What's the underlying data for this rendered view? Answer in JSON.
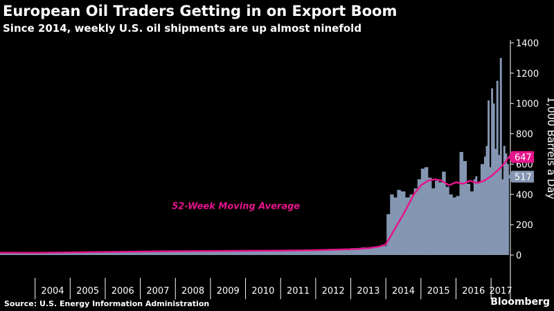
{
  "header": {
    "title": "European Oil Traders Getting in on Export Boom",
    "subtitle": "Since 2014, weekly U.S. oil shipments are up almost ninefold"
  },
  "footer": {
    "source": "Source: U.S. Energy Information Administration",
    "brand": "Bloomberg"
  },
  "colors": {
    "background": "#000000",
    "bars": "#8496b2",
    "moving_average": "#e6148c",
    "text": "#ffffff"
  },
  "chart_data": {
    "type": "area",
    "title": "European Oil Traders Getting in on Export Boom",
    "subtitle": "Since 2014, weekly U.S. oil shipments are up almost ninefold",
    "ylabel": "1,000 Barrels a Day",
    "ylim": [
      0,
      1400
    ],
    "yticks": [
      0,
      200,
      400,
      600,
      800,
      1000,
      1200,
      1400
    ],
    "xlim": [
      2003.0,
      2017.55
    ],
    "x_tick_labels": [
      "2004",
      "2005",
      "2006",
      "2007",
      "2008",
      "2009",
      "2010",
      "2011",
      "2012",
      "2013",
      "2014",
      "2015",
      "2016",
      "2017"
    ],
    "y_axis_side": "right",
    "grid": false,
    "series": [
      {
        "name": "",
        "style": "bars",
        "x": [
          2003.0,
          2004.0,
          2005.0,
          2006.0,
          2007.0,
          2008.0,
          2009.0,
          2010.0,
          2011.0,
          2012.0,
          2012.5,
          2013.0,
          2013.3,
          2013.6,
          2013.9,
          2014.02,
          2014.12,
          2014.22,
          2014.32,
          2014.42,
          2014.55,
          2014.68,
          2014.8,
          2014.9,
          2015.0,
          2015.1,
          2015.2,
          2015.3,
          2015.4,
          2015.5,
          2015.6,
          2015.7,
          2015.8,
          2015.9,
          2016.0,
          2016.1,
          2016.2,
          2016.3,
          2016.4,
          2016.5,
          2016.55,
          2016.6,
          2016.7,
          2016.8,
          2016.85,
          2016.9,
          2016.95,
          2017.0,
          2017.05,
          2017.1,
          2017.15,
          2017.2,
          2017.25,
          2017.3,
          2017.35,
          2017.4,
          2017.45,
          2017.5
        ],
        "values": [
          15,
          15,
          18,
          22,
          25,
          26,
          28,
          30,
          30,
          35,
          40,
          45,
          50,
          55,
          60,
          270,
          400,
          380,
          430,
          420,
          380,
          400,
          440,
          500,
          570,
          580,
          510,
          440,
          490,
          480,
          550,
          450,
          400,
          380,
          390,
          680,
          620,
          470,
          420,
          500,
          520,
          480,
          600,
          650,
          720,
          1020,
          580,
          1100,
          1000,
          700,
          1150,
          660,
          1300,
          500,
          720,
          670,
          600,
          517
        ]
      },
      {
        "name": "52-Week Moving Average",
        "style": "line",
        "x": [
          2003.0,
          2004.0,
          2005.0,
          2006.0,
          2007.0,
          2008.0,
          2009.0,
          2010.0,
          2011.0,
          2012.0,
          2013.0,
          2013.5,
          2013.8,
          2014.0,
          2014.2,
          2014.5,
          2014.8,
          2015.0,
          2015.2,
          2015.4,
          2015.6,
          2015.8,
          2016.0,
          2016.2,
          2016.4,
          2016.6,
          2016.8,
          2017.0,
          2017.2,
          2017.4,
          2017.5
        ],
        "values": [
          15,
          14,
          17,
          20,
          23,
          25,
          26,
          28,
          29,
          32,
          38,
          45,
          55,
          70,
          150,
          270,
          400,
          460,
          490,
          500,
          490,
          460,
          480,
          470,
          490,
          475,
          490,
          520,
          560,
          610,
          647
        ]
      }
    ],
    "annotations": [
      {
        "text": "52-Week Moving Average",
        "series": "52-Week Moving Average",
        "x": 2007.9,
        "y": 325
      }
    ],
    "end_labels": [
      {
        "series": "52-Week Moving Average",
        "value": 647,
        "text": "647"
      },
      {
        "series": "bars",
        "value": 517,
        "text": "517"
      }
    ]
  }
}
